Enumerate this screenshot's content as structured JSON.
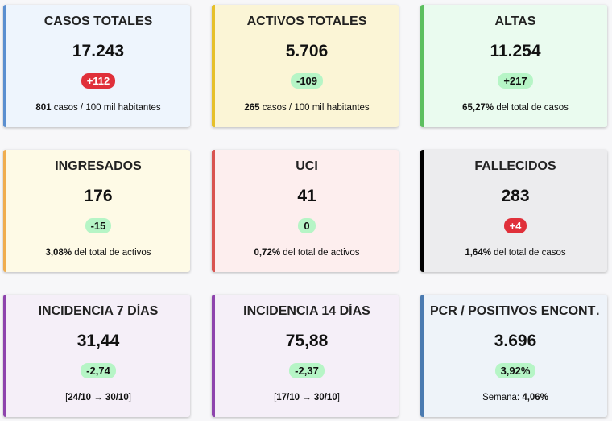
{
  "cards": [
    {
      "title": "CASOS TOTALES",
      "value": "17.243",
      "change": "+112",
      "badge_bg": "#e0303a",
      "badge_fg": "#ffffff",
      "accent": "#5b8fd0",
      "background": "#eef5fd",
      "note": [
        {
          "text": "801",
          "bold": true
        },
        {
          "text": " casos / 100 mil habitantes",
          "bold": false
        }
      ]
    },
    {
      "title": "ACTIVOS TOTALES",
      "value": "5.706",
      "change": "-109",
      "badge_bg": "#b6f5c6",
      "badge_fg": "#111111",
      "accent": "#e6c02a",
      "background": "#fbf5d6",
      "note": [
        {
          "text": "265",
          "bold": true
        },
        {
          "text": " casos / 100 mil habitantes",
          "bold": false
        }
      ]
    },
    {
      "title": "ALTAS",
      "value": "11.254",
      "change": "+217",
      "badge_bg": "#b6f5c6",
      "badge_fg": "#111111",
      "accent": "#5cbf5f",
      "background": "#eafbef",
      "note": [
        {
          "text": "65,27%",
          "bold": true
        },
        {
          "text": " del total de casos",
          "bold": false
        }
      ]
    },
    {
      "title": "INGRESADOS",
      "value": "176",
      "change": "-15",
      "badge_bg": "#b6f5c6",
      "badge_fg": "#111111",
      "accent": "#f0ad4e",
      "background": "#fefae6",
      "note": [
        {
          "text": "3,08%",
          "bold": true
        },
        {
          "text": " del total de activos",
          "bold": false
        }
      ]
    },
    {
      "title": "UCI",
      "value": "41",
      "change": "0",
      "badge_bg": "#b6f5c6",
      "badge_fg": "#111111",
      "accent": "#d9534f",
      "background": "#fdeeee",
      "note": [
        {
          "text": "0,72%",
          "bold": true
        },
        {
          "text": " del total de activos",
          "bold": false
        }
      ]
    },
    {
      "title": "FALLECIDOS",
      "value": "283",
      "change": "+4",
      "badge_bg": "#e0303a",
      "badge_fg": "#ffffff",
      "accent": "#000000",
      "background": "#ececee",
      "note": [
        {
          "text": "1,64%",
          "bold": true
        },
        {
          "text": " del total de casos",
          "bold": false
        }
      ]
    },
    {
      "title": "INCIDENCIA 7 DÍAS",
      "value": "31,44",
      "change": "-2,74",
      "badge_bg": "#b6f5c6",
      "badge_fg": "#111111",
      "accent": "#8e44ad",
      "background": "#f5eff8",
      "note": [
        {
          "text": "[",
          "bold": false
        },
        {
          "text": "24/10 → 30/10",
          "bold": true
        },
        {
          "text": "]",
          "bold": false
        }
      ]
    },
    {
      "title": "INCIDENCIA 14 DÍAS",
      "value": "75,88",
      "change": "-2,37",
      "badge_bg": "#b6f5c6",
      "badge_fg": "#111111",
      "accent": "#8e44ad",
      "background": "#f5eff8",
      "note": [
        {
          "text": "[",
          "bold": false
        },
        {
          "text": "17/10 → 30/10",
          "bold": true
        },
        {
          "text": "]",
          "bold": false
        }
      ]
    },
    {
      "title": "PCR / POSITIVOS ENCONT…",
      "value": "3.696",
      "change": "3,92%",
      "badge_bg": "#b6f5c6",
      "badge_fg": "#111111",
      "accent": "#4a7ab0",
      "background": "#eef3f9",
      "note": [
        {
          "text": "Semana: ",
          "bold": false
        },
        {
          "text": "4,06%",
          "bold": true
        }
      ]
    }
  ]
}
